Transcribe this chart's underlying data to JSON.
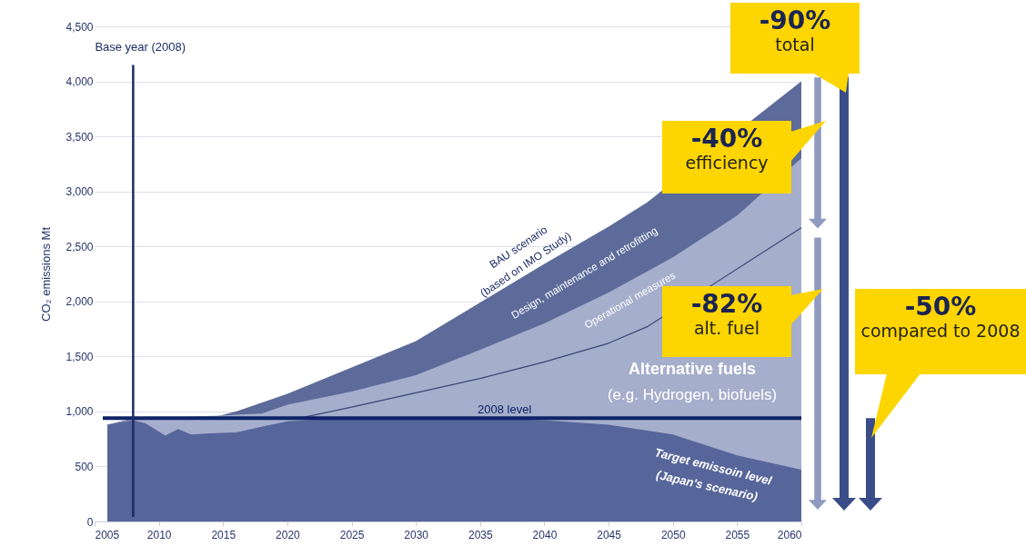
{
  "chart_data": {
    "type": "area",
    "ylabel": "CO₂ emissions Mt",
    "x": [
      2006,
      2008,
      2009,
      2010.5,
      2011.5,
      2012.5,
      2014,
      2016,
      2018,
      2020,
      2025,
      2030,
      2035,
      2040,
      2045,
      2050,
      2055,
      2060
    ],
    "series": [
      {
        "color": "#5c6b99",
        "x": [
          2006,
          2008,
          2009,
          2014,
          2016,
          2018,
          2020,
          2025,
          2030,
          2035,
          2040,
          2045,
          2048,
          2060
        ],
        "values": [
          880,
          940,
          930,
          940,
          1000,
          1080,
          1160,
          1400,
          1640,
          1990,
          2340,
          2680,
          2900,
          4000
        ]
      },
      {
        "color": "#a5aecb",
        "x": [
          2006,
          2008,
          2018,
          2020,
          2025,
          2030,
          2035,
          2040,
          2045,
          2050,
          2055,
          2060
        ],
        "values": [
          880,
          930,
          980,
          1060,
          1180,
          1330,
          1560,
          1800,
          2080,
          2400,
          2780,
          3300
        ]
      },
      {
        "color": "#56659a",
        "values": [
          880,
          920,
          890,
          780,
          840,
          790,
          800,
          810,
          860,
          910,
          950,
          950,
          940,
          920,
          880,
          790,
          600,
          470
        ]
      },
      {
        "type": "line",
        "color": "#3b4875",
        "x": [
          2021,
          2025,
          2030,
          2035,
          2040,
          2045,
          2048,
          2060
        ],
        "values": [
          940,
          1040,
          1170,
          1300,
          1450,
          1620,
          1770,
          2670
        ]
      }
    ],
    "xlim": [
      2005,
      2060
    ],
    "ylim": [
      0,
      4500
    ],
    "xticks": [
      2005,
      2010,
      2015,
      2020,
      2025,
      2030,
      2035,
      2040,
      2045,
      2050,
      2055,
      2060
    ],
    "yticks": [
      0,
      500,
      {
        "value": 1000,
        "label": "1,000"
      },
      {
        "value": 1500,
        "label": "1,500"
      },
      {
        "value": 2000,
        "label": "2,000"
      },
      {
        "value": 2500,
        "label": "2,500"
      },
      {
        "value": 3000,
        "label": "3,000"
      },
      {
        "value": 3500,
        "label": "3,500"
      },
      {
        "value": 4000,
        "label": "4,000"
      },
      {
        "value": 4500,
        "label": "4,500"
      }
    ],
    "grid": "y",
    "ref_lines": [
      {
        "axis": "y",
        "value": 940,
        "label": "2008 level",
        "color": "#0e2366"
      },
      {
        "axis": "x",
        "value": 2008,
        "label": "Base year (2008)",
        "color": "#1b2c66"
      }
    ],
    "annotations": [
      "BAU scenario",
      "(based on IMO Study)",
      "Design, maintenance and retrofitting",
      "Operational measures",
      "Alternative fuels",
      "(e.g. Hydrogen, biofuels)",
      "Target emissoin level",
      "(Japan's scenario)",
      "-90%",
      "total",
      "-40%",
      "efficiency",
      "-82%",
      "alt. fuel",
      "-50%",
      "compared to 2008"
    ]
  }
}
